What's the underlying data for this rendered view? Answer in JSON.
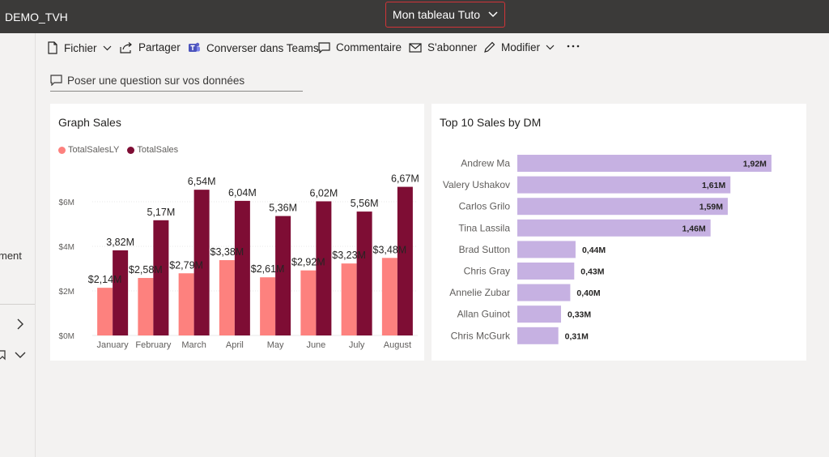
{
  "topbar": {
    "workspace": "DEMO_TVH",
    "report_title": "Mon tableau Tuto"
  },
  "toolbar": {
    "fichier": "Fichier",
    "partager": "Partager",
    "teams": "Converser dans Teams",
    "commentaire": "Commentaire",
    "sabonner": "S'abonner",
    "modifier": "Modifier"
  },
  "qa": {
    "placeholder": "Poser une question sur vos données"
  },
  "leftnav": {
    "partial_label": "ment"
  },
  "colors": {
    "totalSalesLY": "#fd817e",
    "totalSales": "#7e0d34",
    "barDM": "#c6b1e2",
    "topbar": "#3b3a39",
    "accent_border": "#d13438"
  },
  "tile1": {
    "title": "Graph Sales",
    "chart_data": {
      "type": "bar",
      "categories": [
        "January",
        "February",
        "March",
        "April",
        "May",
        "June",
        "July",
        "August"
      ],
      "series": [
        {
          "name": "TotalSalesLY",
          "values": [
            2.14,
            2.58,
            2.79,
            3.38,
            2.61,
            2.92,
            3.23,
            3.48
          ],
          "labels": [
            "$2,14M",
            "$2,58M",
            "$2,79M",
            "$3,38M",
            "$2,61M",
            "$2,92M",
            "$3,23M",
            "$3,48M"
          ]
        },
        {
          "name": "TotalSales",
          "values": [
            3.82,
            5.17,
            6.54,
            6.04,
            5.36,
            6.02,
            5.56,
            6.67
          ],
          "labels": [
            "3,82M",
            "5,17M",
            "6,54M",
            "6,04M",
            "5,36M",
            "6,02M",
            "5,56M",
            "6,67M"
          ]
        }
      ],
      "ylim": [
        0,
        7
      ],
      "yticks": [
        0,
        2,
        4,
        6
      ],
      "ytick_labels": [
        "$0M",
        "$2M",
        "$4M",
        "$6M"
      ],
      "grid": true,
      "legend": "top-left"
    }
  },
  "tile2": {
    "title": "Top 10 Sales by DM",
    "chart_data": {
      "type": "bar",
      "orientation": "horizontal",
      "categories": [
        "Andrew Ma",
        "Valery Ushakov",
        "Carlos Grilo",
        "Tina Lassila",
        "Brad Sutton",
        "Chris Gray",
        "Annelie Zubar",
        "Allan Guinot",
        "Chris McGurk"
      ],
      "values": [
        1.92,
        1.61,
        1.59,
        1.46,
        0.44,
        0.43,
        0.4,
        0.33,
        0.31
      ],
      "labels": [
        "1,92M",
        "1,61M",
        "1,59M",
        "1,46M",
        "0,44M",
        "0,43M",
        "0,40M",
        "0,33M",
        "0,31M"
      ]
    }
  }
}
